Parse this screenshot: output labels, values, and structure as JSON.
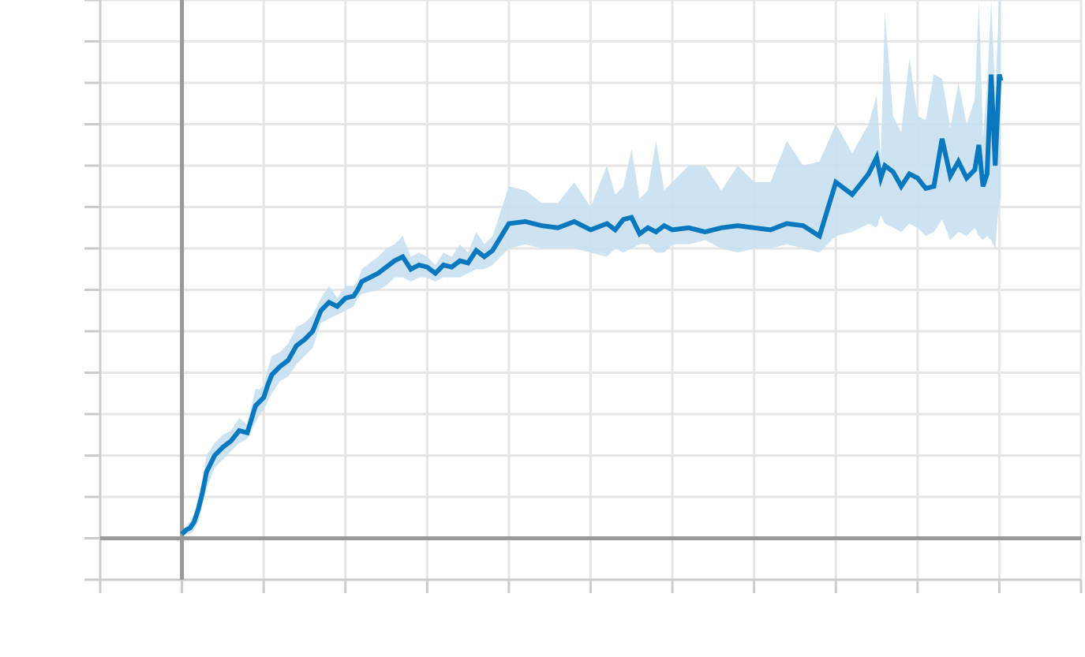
{
  "colors": {
    "background": "#ffffff",
    "grid": "#e6e6e6",
    "axis": "#999999",
    "tick": "#cccccc",
    "series_line": "#0a78bf",
    "series_band": "#c9e0f0"
  },
  "chart_data": {
    "type": "line",
    "title": "",
    "xlabel": "",
    "ylabel": "",
    "grid": true,
    "tick_labels_visible": false,
    "xlim": [
      -1,
      11
    ],
    "ylim": [
      -1,
      13
    ],
    "x_ticks": [
      -1,
      0,
      1,
      2,
      3,
      4,
      5,
      6,
      7,
      8,
      9,
      10,
      11
    ],
    "y_ticks": [
      -1,
      0,
      1,
      2,
      3,
      4,
      5,
      6,
      7,
      8,
      9,
      10,
      11,
      12,
      13
    ],
    "series": [
      {
        "has_band": true,
        "x": [
          0,
          0.05,
          0.1,
          0.15,
          0.2,
          0.25,
          0.3,
          0.4,
          0.5,
          0.6,
          0.7,
          0.8,
          0.9,
          0.95,
          1.0,
          1.05,
          1.1,
          1.2,
          1.3,
          1.4,
          1.5,
          1.6,
          1.7,
          1.8,
          1.9,
          2.0,
          2.1,
          2.15,
          2.2,
          2.4,
          2.5,
          2.6,
          2.7,
          2.8,
          2.9,
          3.0,
          3.1,
          3.2,
          3.3,
          3.4,
          3.5,
          3.6,
          3.7,
          3.8,
          4.0,
          4.2,
          4.4,
          4.6,
          4.8,
          5.0,
          5.2,
          5.3,
          5.4,
          5.5,
          5.6,
          5.7,
          5.8,
          5.9,
          6.0,
          6.2,
          6.4,
          6.6,
          6.8,
          7.0,
          7.2,
          7.4,
          7.6,
          7.8,
          8.0,
          8.2,
          8.4,
          8.5,
          8.55,
          8.6,
          8.7,
          8.8,
          8.9,
          9.0,
          9.1,
          9.2,
          9.3,
          9.4,
          9.5,
          9.6,
          9.7,
          9.75,
          9.8,
          9.85,
          9.9,
          9.95,
          10.0,
          10.02
        ],
        "y": [
          0.1,
          0.2,
          0.25,
          0.4,
          0.7,
          1.1,
          1.6,
          2.0,
          2.2,
          2.35,
          2.6,
          2.55,
          3.2,
          3.3,
          3.4,
          3.7,
          3.95,
          4.15,
          4.3,
          4.65,
          4.8,
          5.0,
          5.5,
          5.7,
          5.6,
          5.8,
          5.85,
          6.0,
          6.2,
          6.4,
          6.55,
          6.7,
          6.8,
          6.5,
          6.6,
          6.55,
          6.4,
          6.6,
          6.55,
          6.7,
          6.65,
          6.95,
          6.8,
          6.95,
          7.6,
          7.65,
          7.55,
          7.5,
          7.65,
          7.45,
          7.6,
          7.45,
          7.7,
          7.75,
          7.35,
          7.5,
          7.4,
          7.55,
          7.45,
          7.5,
          7.4,
          7.5,
          7.55,
          7.5,
          7.45,
          7.6,
          7.55,
          7.3,
          8.6,
          8.3,
          8.8,
          9.2,
          8.7,
          9.0,
          8.85,
          8.5,
          8.8,
          8.7,
          8.45,
          8.5,
          9.65,
          8.75,
          9.1,
          8.7,
          8.9,
          9.5,
          8.5,
          8.8,
          11.2,
          9.0,
          11.2,
          11.05
        ],
        "lower": [
          0.05,
          0.1,
          0.1,
          0.2,
          0.4,
          0.8,
          1.2,
          1.7,
          1.9,
          2.1,
          2.3,
          2.4,
          2.8,
          3.0,
          3.1,
          3.3,
          3.5,
          3.8,
          3.9,
          4.2,
          4.4,
          4.6,
          5.2,
          5.3,
          5.4,
          5.5,
          5.6,
          5.8,
          5.9,
          6.0,
          6.1,
          6.3,
          6.3,
          6.2,
          6.3,
          6.3,
          6.2,
          6.3,
          6.3,
          6.3,
          6.4,
          6.5,
          6.5,
          6.6,
          7.0,
          7.1,
          7.0,
          7.0,
          7.0,
          6.9,
          6.8,
          7.0,
          6.9,
          7.0,
          7.1,
          7.1,
          6.9,
          6.9,
          7.1,
          7.1,
          7.2,
          7.0,
          6.9,
          7.0,
          7.0,
          7.1,
          7.0,
          6.9,
          7.3,
          7.4,
          7.6,
          7.5,
          7.8,
          7.6,
          7.5,
          7.4,
          7.6,
          7.5,
          7.3,
          7.4,
          7.7,
          7.2,
          7.4,
          7.3,
          7.5,
          7.3,
          7.2,
          7.3,
          7.2,
          7.0,
          8.2,
          8.1
        ],
        "upper": [
          0.15,
          0.3,
          0.4,
          0.6,
          1.0,
          1.4,
          2.0,
          2.3,
          2.5,
          2.6,
          2.9,
          2.75,
          3.6,
          3.6,
          3.7,
          4.1,
          4.4,
          4.5,
          4.7,
          5.1,
          5.2,
          5.4,
          5.8,
          6.1,
          5.8,
          6.1,
          6.1,
          6.2,
          6.5,
          6.8,
          7.0,
          7.1,
          7.3,
          6.8,
          6.9,
          6.8,
          6.6,
          6.9,
          6.8,
          7.1,
          6.9,
          7.4,
          7.1,
          7.3,
          8.5,
          8.4,
          8.1,
          8.1,
          8.6,
          8.0,
          9.0,
          8.3,
          8.5,
          9.4,
          8.2,
          8.4,
          9.6,
          8.4,
          8.6,
          9.0,
          9.0,
          8.4,
          9.0,
          8.6,
          8.6,
          9.6,
          9.0,
          9.1,
          10.0,
          9.3,
          10.0,
          10.7,
          9.2,
          12.7,
          10.2,
          9.8,
          11.6,
          10.2,
          10.1,
          11.2,
          11.1,
          9.9,
          11.0,
          10.0,
          10.6,
          13.0,
          9.7,
          10.9,
          13.0,
          10.8,
          13.0,
          13.0
        ]
      }
    ]
  }
}
